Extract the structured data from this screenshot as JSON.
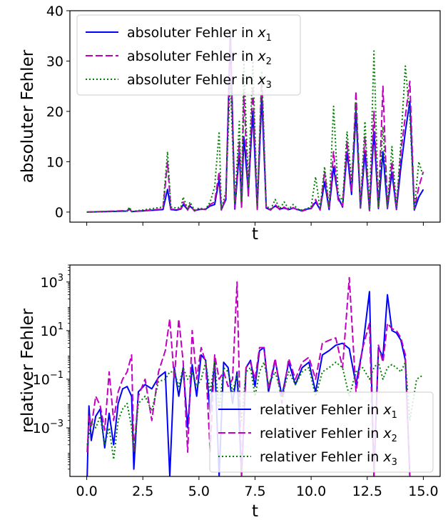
{
  "chart_data": [
    {
      "type": "line",
      "xlabel": "t",
      "ylabel": "absoluter Fehler",
      "ylim": [
        -2,
        40
      ],
      "xlim": [
        -0.75,
        15.75
      ],
      "yticks": [
        0,
        10,
        20,
        30,
        40
      ],
      "ytick_labels": [
        "0",
        "10",
        "20",
        "30",
        "40"
      ],
      "xticks": [
        0,
        2.5,
        5,
        7.5,
        10,
        12.5,
        15
      ],
      "xtick_labels_visible": false,
      "legend": {
        "placement": "upper-left",
        "entries": [
          {
            "prefix": "absoluter Fehler in ",
            "var": "x",
            "sub": "1"
          },
          {
            "prefix": "absoluter Fehler in ",
            "var": "x",
            "sub": "2"
          },
          {
            "prefix": "absoluter Fehler in ",
            "var": "x",
            "sub": "3"
          }
        ]
      },
      "series": [
        {
          "color": "#0000ff",
          "style": "solid",
          "x": [
            0,
            1.8,
            1.9,
            2.0,
            3.4,
            3.6,
            3.75,
            4.0,
            4.2,
            4.3,
            4.5,
            4.6,
            4.8,
            5.0,
            5.3,
            5.5,
            5.7,
            5.9,
            6.0,
            6.2,
            6.4,
            6.6,
            6.8,
            6.9,
            7.0,
            7.2,
            7.4,
            7.6,
            7.8,
            8.0,
            8.2,
            8.4,
            8.6,
            8.8,
            9.0,
            9.2,
            9.4,
            9.6,
            9.8,
            10.0,
            10.2,
            10.4,
            10.6,
            10.8,
            11.0,
            11.2,
            11.4,
            11.6,
            11.8,
            12.0,
            12.2,
            12.4,
            12.6,
            12.8,
            13.0,
            13.2,
            13.4,
            13.6,
            13.8,
            14.0,
            14.2,
            14.4,
            14.6,
            14.8,
            15.0
          ],
          "y": [
            0,
            0.2,
            0.6,
            0.1,
            0.5,
            4.5,
            0.5,
            0.4,
            0.6,
            1.5,
            0.5,
            1.2,
            0.3,
            0.5,
            0.6,
            1.2,
            1.5,
            6.5,
            0.5,
            2.5,
            36,
            0.6,
            12,
            1.0,
            15,
            4.0,
            20,
            0.7,
            23,
            0.8,
            0.5,
            1.2,
            0.6,
            0.8,
            0.5,
            0.8,
            0.5,
            0.3,
            0.6,
            0.7,
            2.0,
            0.5,
            6.0,
            0.5,
            9.0,
            3.0,
            1.0,
            12,
            3.5,
            20,
            0.8,
            12,
            0.3,
            16,
            0.7,
            12,
            0.7,
            8.0,
            0.5,
            9.0,
            16,
            22,
            0.4,
            3.0,
            4.5
          ]
        },
        {
          "color": "#bf00bf",
          "style": "dashed",
          "x": [
            0,
            1.8,
            1.9,
            2.0,
            3.4,
            3.6,
            3.75,
            4.0,
            4.2,
            4.3,
            4.5,
            4.6,
            4.8,
            5.0,
            5.3,
            5.5,
            5.7,
            5.9,
            6.0,
            6.2,
            6.4,
            6.6,
            6.8,
            6.9,
            7.0,
            7.2,
            7.4,
            7.6,
            7.8,
            8.0,
            8.2,
            8.4,
            8.6,
            8.8,
            9.0,
            9.2,
            9.4,
            9.6,
            9.8,
            10.0,
            10.2,
            10.4,
            10.6,
            10.8,
            11.0,
            11.2,
            11.4,
            11.6,
            11.8,
            12.0,
            12.2,
            12.4,
            12.6,
            12.8,
            13.0,
            13.2,
            13.4,
            13.6,
            13.8,
            14.0,
            14.2,
            14.4,
            14.6,
            14.8,
            15.0
          ],
          "y": [
            0,
            0.3,
            0.7,
            0.1,
            0.6,
            10,
            0.6,
            0.5,
            0.7,
            2.0,
            0.4,
            1.5,
            0.2,
            0.6,
            0.5,
            1.5,
            2.0,
            8.0,
            0.4,
            3.0,
            34,
            0.8,
            14,
            1.0,
            24,
            3.0,
            25,
            0.5,
            27,
            0.7,
            0.4,
            1.5,
            0.5,
            1.0,
            0.4,
            0.9,
            0.4,
            0.2,
            0.5,
            0.8,
            2.5,
            0.4,
            8.0,
            0.6,
            12,
            2.5,
            1.2,
            14,
            4.0,
            24,
            0.8,
            15,
            0.3,
            20,
            0.6,
            25,
            0.8,
            10,
            0.6,
            12,
            19,
            26,
            0.5,
            5.0,
            8.0
          ]
        },
        {
          "color": "#008000",
          "style": "dotted",
          "x": [
            0,
            1.8,
            1.9,
            2.0,
            3.4,
            3.6,
            3.75,
            4.0,
            4.2,
            4.3,
            4.5,
            4.6,
            4.8,
            5.0,
            5.3,
            5.5,
            5.7,
            5.9,
            6.0,
            6.2,
            6.4,
            6.6,
            6.8,
            6.9,
            7.0,
            7.2,
            7.4,
            7.6,
            7.8,
            8.0,
            8.2,
            8.4,
            8.6,
            8.8,
            9.0,
            9.2,
            9.4,
            9.6,
            9.8,
            10.0,
            10.2,
            10.4,
            10.6,
            10.8,
            11.0,
            11.2,
            11.4,
            11.6,
            11.8,
            12.0,
            12.2,
            12.4,
            12.6,
            12.8,
            13.0,
            13.2,
            13.4,
            13.6,
            13.8,
            14.0,
            14.2,
            14.4,
            14.6,
            14.8,
            15.0
          ],
          "y": [
            0,
            0.2,
            1.0,
            0.1,
            1.0,
            12,
            1.0,
            0.8,
            1.0,
            3.0,
            0.6,
            2.0,
            0.4,
            0.8,
            0.6,
            2.0,
            5.0,
            16,
            0.6,
            4.0,
            26,
            1.5,
            18,
            2.0,
            30,
            5.0,
            30,
            1.0,
            28,
            1.2,
            0.6,
            2.5,
            0.7,
            2.0,
            0.6,
            1.5,
            0.6,
            0.4,
            0.7,
            1.0,
            7.0,
            0.6,
            9.0,
            1.0,
            21,
            4.0,
            2.0,
            16,
            6.0,
            22,
            1.2,
            18,
            0.4,
            32,
            1.0,
            17,
            1.0,
            13,
            0.8,
            14,
            29,
            19,
            0.6,
            10,
            7.0
          ]
        }
      ]
    },
    {
      "type": "line",
      "xlabel": "t",
      "ylabel": "relativer Fehler",
      "yscale": "log",
      "ylim": [
        1e-05,
        5000
      ],
      "xlim": [
        -0.75,
        15.75
      ],
      "yticks": [
        0.001,
        0.1,
        10,
        1000
      ],
      "ytick_labels": [
        {
          "base": "10",
          "exp": "−3"
        },
        {
          "base": "10",
          "exp": "−1"
        },
        {
          "base": "10",
          "exp": "1"
        },
        {
          "base": "10",
          "exp": "3"
        }
      ],
      "xticks": [
        0,
        2.5,
        5,
        7.5,
        10,
        12.5,
        15
      ],
      "xtick_labels": [
        "0.0",
        "2.5",
        "5.0",
        "7.5",
        "10.0",
        "12.5",
        "15.0"
      ],
      "legend": {
        "placement": "lower-right",
        "entries": [
          {
            "prefix": "relativer Fehler in ",
            "var": "x",
            "sub": "1"
          },
          {
            "prefix": "relativer Fehler in ",
            "var": "x",
            "sub": "2"
          },
          {
            "prefix": "relativer Fehler in ",
            "var": "x",
            "sub": "3"
          }
        ]
      },
      "series": [
        {
          "color": "#0000ff",
          "style": "solid",
          "x": [
            0.02,
            0.1,
            0.2,
            0.4,
            0.6,
            0.8,
            1.0,
            1.2,
            1.4,
            1.6,
            1.8,
            2.0,
            2.1,
            2.3,
            2.6,
            2.9,
            3.2,
            3.5,
            3.7,
            3.9,
            4.1,
            4.3,
            4.5,
            4.7,
            4.9,
            5.1,
            5.3,
            5.5,
            5.7,
            5.9,
            6.1,
            6.3,
            6.5,
            6.7,
            6.9,
            7.1,
            7.3,
            7.5,
            7.7,
            7.9,
            8.1,
            8.4,
            8.7,
            9.0,
            9.3,
            9.6,
            9.9,
            10.2,
            10.5,
            10.8,
            11.1,
            11.4,
            11.7,
            12.0,
            12.3,
            12.6,
            12.8,
            13.0,
            13.2,
            13.4,
            13.6,
            13.8,
            14.0,
            14.2,
            14.4
          ],
          "y": [
            1e-05,
            0.008,
            0.0003,
            0.003,
            0.006,
            0.00015,
            0.004,
            0.0002,
            0.01,
            0.04,
            0.05,
            0.02,
            2e-05,
            0.03,
            0.06,
            0.04,
            0.12,
            0.2,
            1e-05,
            0.3,
            0.02,
            0.3,
            0.001,
            0.4,
            0.02,
            1.0,
            0.6,
            0.004,
            0.6,
            1e-05,
            0.5,
            0.3,
            0.01,
            0.2,
            1e-05,
            0.3,
            0.6,
            0.05,
            1.5,
            2.0,
            0.03,
            0.6,
            0.02,
            0.5,
            0.06,
            0.3,
            0.5,
            0.03,
            1.0,
            1.5,
            2.5,
            3.0,
            1.8,
            0.06,
            2.0,
            400,
            1e-05,
            2.0,
            0.8,
            300,
            10,
            8.0,
            4.0,
            0.6,
            1e-05
          ]
        },
        {
          "color": "#bf00bf",
          "style": "dashed",
          "x": [
            0.02,
            0.1,
            0.2,
            0.4,
            0.6,
            0.8,
            1.0,
            1.2,
            1.4,
            1.6,
            1.8,
            2.0,
            2.1,
            2.3,
            2.6,
            2.9,
            3.2,
            3.5,
            3.7,
            3.9,
            4.1,
            4.3,
            4.5,
            4.7,
            4.9,
            5.1,
            5.3,
            5.5,
            5.7,
            5.9,
            6.1,
            6.3,
            6.5,
            6.7,
            6.9,
            7.1,
            7.3,
            7.5,
            7.7,
            7.9,
            8.1,
            8.4,
            8.7,
            9.0,
            9.3,
            9.6,
            9.9,
            10.2,
            10.5,
            10.8,
            11.1,
            11.4,
            11.7,
            12.0,
            12.3,
            12.6,
            12.8,
            13.0,
            13.2,
            13.4,
            13.6,
            13.8,
            14.0,
            14.2,
            14.4
          ],
          "y": [
            0.0001,
            0.003,
            0.001,
            0.02,
            0.008,
            0.0008,
            0.2,
            0.002,
            0.03,
            0.1,
            0.2,
            1.0,
            0.0001,
            0.02,
            0.1,
            0.002,
            0.2,
            1.5,
            30,
            0.1,
            30,
            0.5,
            0.0001,
            10,
            0.1,
            2.0,
            0.5,
            0.0001,
            1.0,
            0.1,
            0.2,
            0.05,
            0.1,
            1000,
            1e-05,
            0.3,
            0.5,
            0.1,
            2.0,
            2.0,
            0.04,
            0.7,
            0.01,
            0.7,
            0.1,
            0.5,
            0.8,
            0.1,
            3.0,
            4.0,
            5.0,
            0.3,
            1500,
            0.03,
            2.0,
            20,
            1e-05,
            2.5,
            0.5,
            20,
            12,
            10,
            5.0,
            1.0,
            1e-05
          ]
        },
        {
          "color": "#008000",
          "style": "dotted",
          "x": [
            0.02,
            0.1,
            0.2,
            0.4,
            0.6,
            0.8,
            1.0,
            1.2,
            1.4,
            1.6,
            1.8,
            2.0,
            2.1,
            2.3,
            2.6,
            2.9,
            3.2,
            3.5,
            3.7,
            3.9,
            4.1,
            4.3,
            4.5,
            4.7,
            4.9,
            5.1,
            5.3,
            5.5,
            5.7,
            5.9,
            6.1,
            6.3,
            6.5,
            6.7,
            6.9,
            7.1,
            7.3,
            7.5,
            7.7,
            7.9,
            8.1,
            8.4,
            8.7,
            9.0,
            9.3,
            9.6,
            9.9,
            10.2,
            10.5,
            10.8,
            11.1,
            11.4,
            11.7,
            12.0,
            12.3,
            12.6,
            12.8,
            13.0,
            13.2,
            13.4,
            13.6,
            13.8,
            14.0,
            14.2,
            14.4,
            14.7,
            15.0
          ],
          "y": [
            0.0002,
            0.0005,
            0.002,
            0.001,
            0.003,
            0.0002,
            0.001,
            5e-05,
            0.002,
            0.006,
            0.01,
            0.001,
            0.0001,
            0.01,
            0.02,
            0.005,
            0.08,
            0.1,
            0.2,
            0.2,
            0.05,
            0.3,
            0.1,
            0.2,
            0.05,
            0.1,
            0.5,
            0.03,
            0.5,
            0.005,
            0.3,
            0.2,
            0.03,
            0.15,
            0.002,
            0.2,
            0.3,
            0.02,
            0.2,
            0.5,
            0.06,
            0.2,
            0.02,
            0.2,
            0.06,
            0.2,
            0.3,
            0.02,
            0.2,
            0.3,
            0.5,
            0.3,
            0.02,
            0.2,
            0.3,
            0.1,
            0.3,
            0.5,
            0.1,
            0.3,
            0.4,
            0.3,
            0.2,
            0.5,
            0.002,
            0.1,
            0.15
          ]
        }
      ]
    }
  ]
}
